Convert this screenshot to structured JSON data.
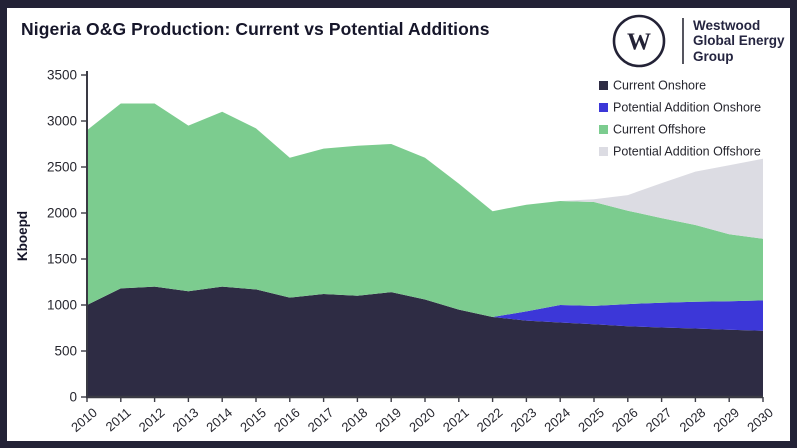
{
  "logo": {
    "monogram": "W",
    "lines": [
      "Westwood",
      "Global Energy",
      "Group"
    ]
  },
  "colors": {
    "frame": "#232236",
    "background": "#ffffff",
    "axis_line": "#3a3a44",
    "text": "#26262e",
    "title_text": "#16162a"
  },
  "chart_data": {
    "type": "area",
    "stacked": true,
    "title": "Nigeria O&G Production: Current vs Potential Additions",
    "xlabel": "",
    "ylabel": "Kboepd",
    "ylim": [
      0,
      3500
    ],
    "yticks": [
      0,
      500,
      1000,
      1500,
      2000,
      2500,
      3000,
      3500
    ],
    "grid": false,
    "legend_position": "top-right-inside",
    "categories": [
      "2010",
      "2011",
      "2012",
      "2013",
      "2014",
      "2015",
      "2016",
      "2017",
      "2018",
      "2019",
      "2020",
      "2021",
      "2022",
      "2023",
      "2024",
      "2025",
      "2026",
      "2027",
      "2028",
      "2029",
      "2030"
    ],
    "series": [
      {
        "name": "Current Onshore",
        "color": "#2e2c44",
        "values": [
          1000,
          1180,
          1200,
          1150,
          1200,
          1170,
          1080,
          1120,
          1100,
          1140,
          1060,
          950,
          870,
          830,
          810,
          790,
          770,
          755,
          745,
          730,
          720
        ]
      },
      {
        "name": "Potential Addition Onshore",
        "color": "#3c37d8",
        "values": [
          0,
          0,
          0,
          0,
          0,
          0,
          0,
          0,
          0,
          0,
          0,
          0,
          0,
          100,
          190,
          200,
          240,
          270,
          290,
          310,
          330
        ]
      },
      {
        "name": "Current Offshore",
        "color": "#7ccc8f",
        "values": [
          1900,
          2010,
          1990,
          1800,
          1900,
          1750,
          1520,
          1580,
          1630,
          1610,
          1540,
          1370,
          1150,
          1160,
          1130,
          1130,
          1015,
          920,
          835,
          730,
          670
        ]
      },
      {
        "name": "Potential Addition Offshore",
        "color": "#dcdce3",
        "values": [
          0,
          0,
          0,
          0,
          0,
          0,
          0,
          0,
          0,
          0,
          0,
          0,
          0,
          0,
          0,
          30,
          170,
          380,
          580,
          750,
          870
        ]
      }
    ]
  }
}
